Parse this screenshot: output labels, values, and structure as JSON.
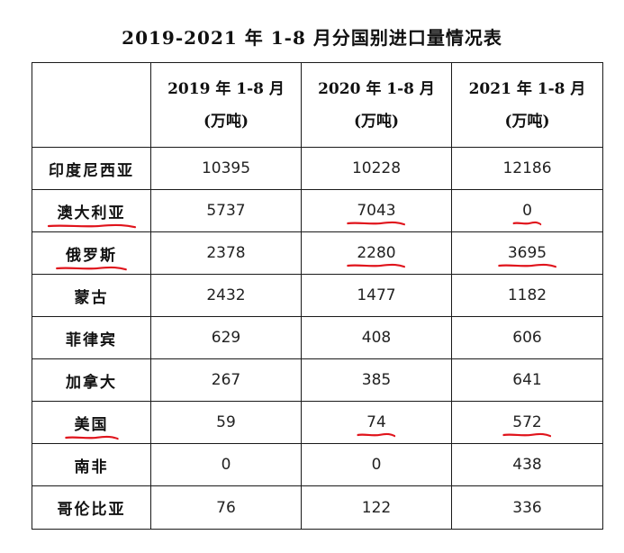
{
  "title": "2019-2021 年 1-8 月分国别进口量情况表",
  "table": {
    "headers": [
      {
        "line1": "",
        "line2": ""
      },
      {
        "line1": "2019 年 1-8 月",
        "line2": "(万吨)"
      },
      {
        "line1": "2020 年 1-8 月",
        "line2": "(万吨)"
      },
      {
        "line1": "2021 年 1-8 月",
        "line2": "(万吨)"
      }
    ],
    "rows": [
      {
        "country": "印度尼西亚",
        "v2019": "10395",
        "v2020": "10228",
        "v2021": "12186"
      },
      {
        "country": "澳大利亚",
        "v2019": "5737",
        "v2020": "7043",
        "v2021": "0"
      },
      {
        "country": "俄罗斯",
        "v2019": "2378",
        "v2020": "2280",
        "v2021": "3695"
      },
      {
        "country": "蒙古",
        "v2019": "2432",
        "v2020": "1477",
        "v2021": "1182"
      },
      {
        "country": "菲律宾",
        "v2019": "629",
        "v2020": "408",
        "v2021": "606"
      },
      {
        "country": "加拿大",
        "v2019": "267",
        "v2020": "385",
        "v2021": "641"
      },
      {
        "country": "美国",
        "v2019": "59",
        "v2020": "74",
        "v2021": "572"
      },
      {
        "country": "南非",
        "v2019": "0",
        "v2020": "0",
        "v2021": "438"
      },
      {
        "country": "哥伦比亚",
        "v2019": "76",
        "v2020": "122",
        "v2021": "336"
      }
    ]
  },
  "annotations": {
    "underline_color": "#e0141c",
    "underlined_cells": [
      {
        "row": 1,
        "col": "country"
      },
      {
        "row": 1,
        "col": "v2020"
      },
      {
        "row": 1,
        "col": "v2021"
      },
      {
        "row": 2,
        "col": "country"
      },
      {
        "row": 2,
        "col": "v2020"
      },
      {
        "row": 2,
        "col": "v2021"
      },
      {
        "row": 6,
        "col": "country"
      },
      {
        "row": 6,
        "col": "v2020"
      },
      {
        "row": 6,
        "col": "v2021"
      }
    ]
  }
}
